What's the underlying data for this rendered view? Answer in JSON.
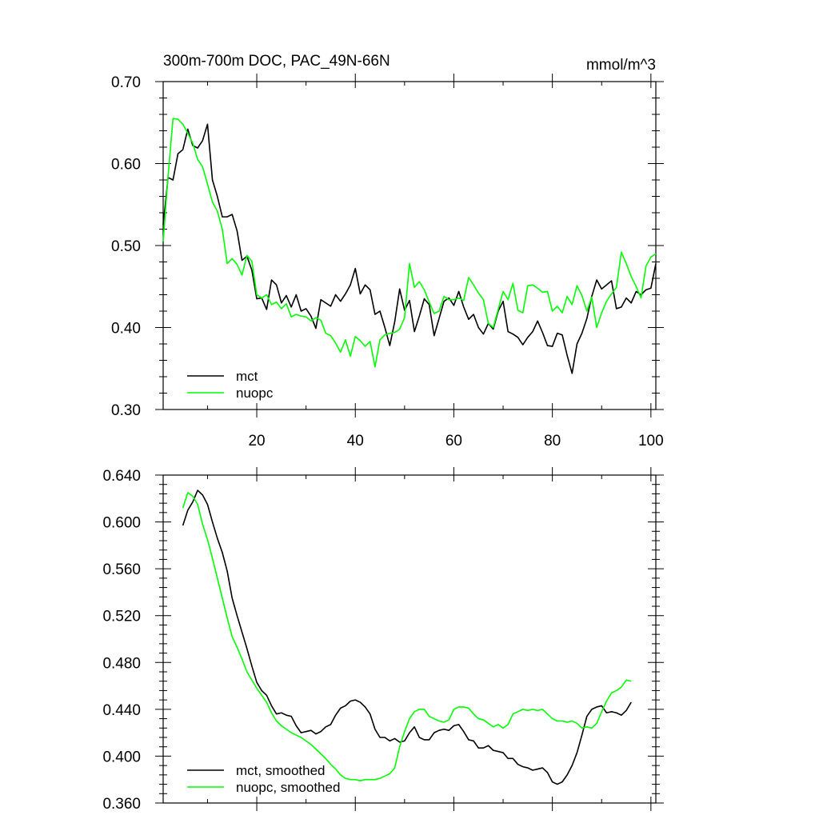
{
  "chart_data": [
    {
      "type": "line",
      "title": "300m-700m DOC, PAC_49N-66N",
      "units": "mmol/m^3",
      "xlim": [
        1,
        101
      ],
      "ylim": [
        0.3,
        0.7
      ],
      "xticks": [
        20,
        40,
        60,
        80,
        100
      ],
      "xticklabels": [
        "20",
        "40",
        "60",
        "80",
        "100"
      ],
      "yticks": [
        0.3,
        0.4,
        0.5,
        0.6,
        0.7
      ],
      "yticklabels": [
        "0.30",
        "0.40",
        "0.50",
        "0.60",
        "0.70"
      ],
      "legend_position": "bottom-left",
      "grid": false,
      "x_start": 1,
      "series": [
        {
          "name": "mct",
          "color": "#000000",
          "values": [
            0.525,
            0.583,
            0.58,
            0.612,
            0.617,
            0.642,
            0.622,
            0.619,
            0.628,
            0.648,
            0.58,
            0.56,
            0.535,
            0.535,
            0.538,
            0.518,
            0.482,
            0.487,
            0.47,
            0.435,
            0.436,
            0.422,
            0.458,
            0.452,
            0.43,
            0.439,
            0.425,
            0.44,
            0.42,
            0.423,
            0.414,
            0.399,
            0.434,
            0.43,
            0.426,
            0.44,
            0.432,
            0.441,
            0.452,
            0.472,
            0.441,
            0.452,
            0.446,
            0.416,
            0.42,
            0.4,
            0.378,
            0.407,
            0.447,
            0.421,
            0.433,
            0.395,
            0.414,
            0.435,
            0.428,
            0.39,
            0.411,
            0.432,
            0.436,
            0.427,
            0.444,
            0.425,
            0.41,
            0.416,
            0.4,
            0.392,
            0.405,
            0.398,
            0.42,
            0.432,
            0.395,
            0.392,
            0.388,
            0.379,
            0.388,
            0.395,
            0.408,
            0.394,
            0.378,
            0.377,
            0.393,
            0.391,
            0.366,
            0.344,
            0.38,
            0.393,
            0.411,
            0.438,
            0.458,
            0.447,
            0.452,
            0.457,
            0.423,
            0.425,
            0.436,
            0.43,
            0.444,
            0.44,
            0.446,
            0.448,
            0.478
          ]
        },
        {
          "name": "nuopc",
          "color": "#00ff00",
          "values": [
            0.505,
            0.585,
            0.655,
            0.654,
            0.648,
            0.637,
            0.625,
            0.605,
            0.596,
            0.575,
            0.553,
            0.542,
            0.52,
            0.478,
            0.484,
            0.477,
            0.464,
            0.488,
            0.481,
            0.44,
            0.436,
            0.44,
            0.428,
            0.431,
            0.423,
            0.429,
            0.413,
            0.416,
            0.414,
            0.413,
            0.408,
            0.412,
            0.409,
            0.393,
            0.39,
            0.381,
            0.37,
            0.385,
            0.365,
            0.389,
            0.384,
            0.377,
            0.383,
            0.352,
            0.385,
            0.391,
            0.393,
            0.394,
            0.398,
            0.412,
            0.478,
            0.449,
            0.456,
            0.446,
            0.431,
            0.417,
            0.42,
            0.438,
            0.434,
            0.434,
            0.436,
            0.433,
            0.461,
            0.452,
            0.442,
            0.434,
            0.405,
            0.4,
            0.422,
            0.444,
            0.434,
            0.454,
            0.421,
            0.418,
            0.451,
            0.452,
            0.448,
            0.443,
            0.444,
            0.42,
            0.426,
            0.418,
            0.438,
            0.428,
            0.451,
            0.439,
            0.42,
            0.437,
            0.4,
            0.418,
            0.432,
            0.441,
            0.449,
            0.492,
            0.478,
            0.462,
            0.45,
            0.436,
            0.475,
            0.486,
            0.49
          ]
        }
      ]
    },
    {
      "type": "line",
      "title": "",
      "xlim": [
        1,
        101
      ],
      "ylim": [
        0.36,
        0.64
      ],
      "xticks": [
        20,
        40,
        60,
        80,
        100
      ],
      "xticklabels": [],
      "yticks": [
        0.36,
        0.4,
        0.44,
        0.48,
        0.52,
        0.56,
        0.6,
        0.64
      ],
      "yticklabels": [
        "0.360",
        "0.400",
        "0.440",
        "0.480",
        "0.520",
        "0.560",
        "0.600",
        "0.640"
      ],
      "legend_position": "bottom-left",
      "grid": false,
      "x_start": 5,
      "series": [
        {
          "name": "mct, smoothed",
          "color": "#000000",
          "values": [
            0.597,
            0.61,
            0.617,
            0.627,
            0.623,
            0.615,
            0.6,
            0.586,
            0.574,
            0.558,
            0.535,
            0.52,
            0.506,
            0.492,
            0.477,
            0.463,
            0.456,
            0.452,
            0.443,
            0.436,
            0.437,
            0.435,
            0.434,
            0.426,
            0.42,
            0.421,
            0.422,
            0.419,
            0.421,
            0.425,
            0.427,
            0.435,
            0.441,
            0.443,
            0.447,
            0.448,
            0.446,
            0.442,
            0.436,
            0.423,
            0.416,
            0.416,
            0.413,
            0.415,
            0.412,
            0.413,
            0.42,
            0.425,
            0.416,
            0.414,
            0.414,
            0.42,
            0.422,
            0.423,
            0.422,
            0.426,
            0.427,
            0.421,
            0.414,
            0.413,
            0.407,
            0.407,
            0.409,
            0.405,
            0.404,
            0.403,
            0.398,
            0.398,
            0.393,
            0.391,
            0.39,
            0.388,
            0.389,
            0.39,
            0.386,
            0.378,
            0.376,
            0.378,
            0.384,
            0.392,
            0.403,
            0.418,
            0.434,
            0.44,
            0.442,
            0.443,
            0.437,
            0.438,
            0.437,
            0.435,
            0.439,
            0.446
          ]
        },
        {
          "name": "nuopc, smoothed",
          "color": "#00ff00",
          "values": [
            0.612,
            0.625,
            0.622,
            0.615,
            0.598,
            0.585,
            0.569,
            0.552,
            0.535,
            0.518,
            0.502,
            0.493,
            0.483,
            0.472,
            0.465,
            0.458,
            0.452,
            0.446,
            0.437,
            0.43,
            0.426,
            0.423,
            0.42,
            0.418,
            0.416,
            0.413,
            0.41,
            0.406,
            0.402,
            0.398,
            0.393,
            0.389,
            0.384,
            0.381,
            0.38,
            0.38,
            0.379,
            0.38,
            0.38,
            0.38,
            0.381,
            0.383,
            0.385,
            0.39,
            0.408,
            0.421,
            0.432,
            0.438,
            0.44,
            0.44,
            0.434,
            0.432,
            0.43,
            0.429,
            0.431,
            0.44,
            0.442,
            0.442,
            0.441,
            0.436,
            0.432,
            0.431,
            0.428,
            0.425,
            0.427,
            0.424,
            0.427,
            0.436,
            0.438,
            0.44,
            0.439,
            0.44,
            0.439,
            0.44,
            0.436,
            0.432,
            0.43,
            0.43,
            0.429,
            0.43,
            0.428,
            0.424,
            0.425,
            0.424,
            0.428,
            0.438,
            0.447,
            0.454,
            0.456,
            0.459,
            0.465,
            0.464
          ]
        }
      ]
    }
  ]
}
